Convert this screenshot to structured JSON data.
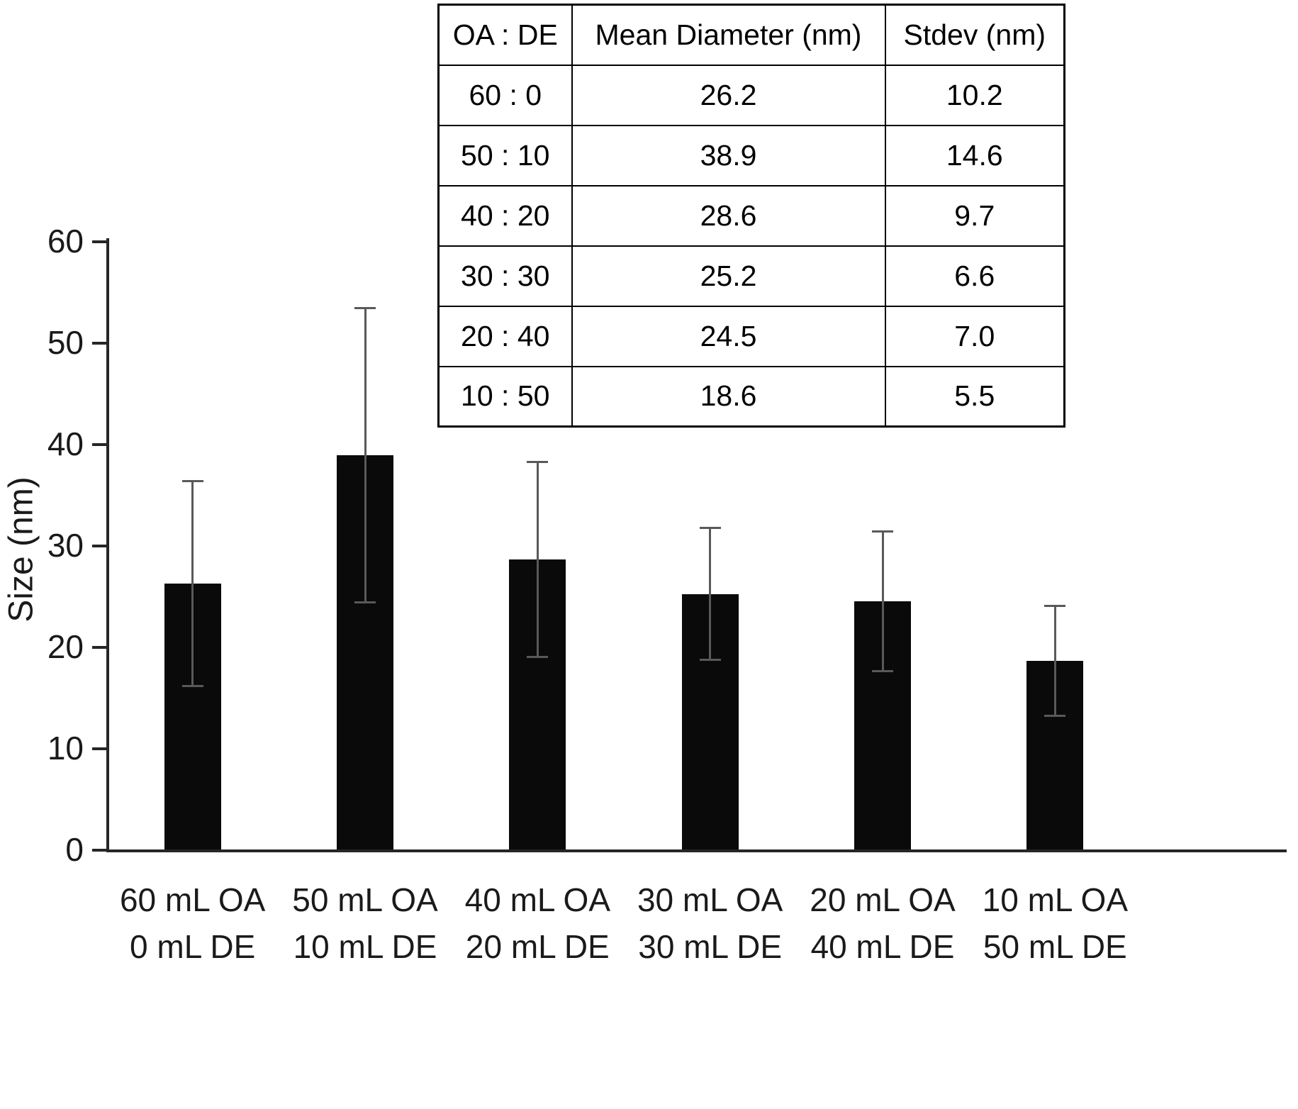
{
  "chart_data": {
    "type": "bar",
    "title": "",
    "xlabel": "",
    "ylabel": "Size (nm)",
    "ylim": [
      0,
      60
    ],
    "ytick_step": 10,
    "grid": false,
    "legend": "none",
    "bar_color": "#0a0a0a",
    "error_bar_color": "#595959",
    "categories": [
      {
        "line1": "60 mL OA",
        "line2": "0 mL DE"
      },
      {
        "line1": "50 mL OA",
        "line2": "10 mL DE"
      },
      {
        "line1": "40 mL OA",
        "line2": "20 mL DE"
      },
      {
        "line1": "30 mL OA",
        "line2": "30 mL DE"
      },
      {
        "line1": "20 mL OA",
        "line2": "40 mL DE"
      },
      {
        "line1": "10 mL OA",
        "line2": "50 mL DE"
      }
    ],
    "values": [
      26.2,
      38.9,
      28.6,
      25.2,
      24.5,
      18.6
    ],
    "errors": [
      10.2,
      14.6,
      9.7,
      6.6,
      7.0,
      5.5
    ]
  },
  "table": {
    "headers": [
      "OA : DE",
      "Mean Diameter (nm)",
      "Stdev (nm)"
    ],
    "rows": [
      [
        "60 : 0",
        "26.2",
        "10.2"
      ],
      [
        "50 : 10",
        "38.9",
        "14.6"
      ],
      [
        "40 : 20",
        "28.6",
        "9.7"
      ],
      [
        "30 : 30",
        "25.2",
        "6.6"
      ],
      [
        "20 : 40",
        "24.5",
        "7.0"
      ],
      [
        "10 : 50",
        "18.6",
        "5.5"
      ]
    ]
  }
}
